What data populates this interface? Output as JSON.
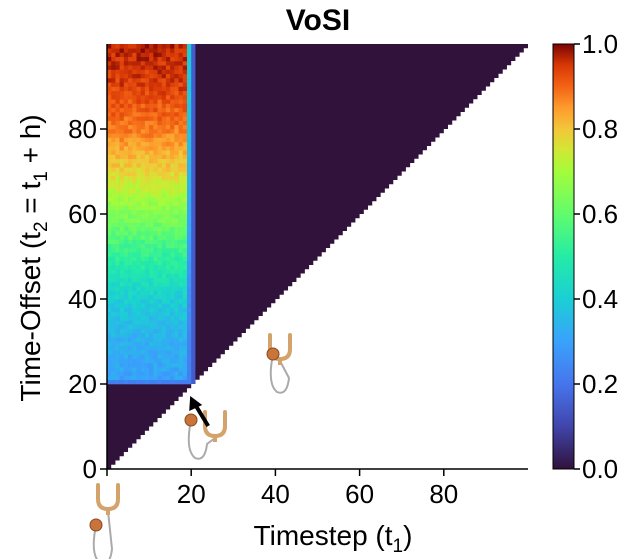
{
  "chart_data": {
    "type": "heatmap",
    "title": "VoSI",
    "xlabel": {
      "main": "Timestep (t",
      "sub": "1",
      "close": ")"
    },
    "ylabel": {
      "p1": "Time-Offset (t",
      "s1": "2",
      "p2": " = t",
      "s2": "1",
      "p3": " + h)"
    },
    "xlim": [
      0,
      100
    ],
    "ylim": [
      0,
      100
    ],
    "x_ticks": [
      0,
      20,
      40,
      60,
      80
    ],
    "y_ticks": [
      0,
      20,
      40,
      60,
      80
    ],
    "x_tick_labels": [
      "20",
      "40",
      "60",
      "80"
    ],
    "y_tick_labels": [
      "0",
      "20",
      "40",
      "60",
      "80"
    ],
    "colorbar": {
      "range": [
        0,
        1
      ],
      "ticks": [
        0.0,
        0.2,
        0.4,
        0.6,
        0.8,
        1.0
      ],
      "tick_labels": [
        "0.0",
        "0.2",
        "0.4",
        "0.6",
        "0.8",
        "1.0"
      ],
      "colormap": "turbo"
    },
    "grid": false,
    "region_description": {
      "mask": "upper triangle (t2 >= t1) shown, lower triangle blank",
      "low_band": {
        "y_range": [
          0,
          20
        ],
        "value": 0.0
      },
      "active_block": {
        "x_range": [
          0,
          20
        ],
        "y_range": [
          20,
          100
        ],
        "value_by_offset": [
          {
            "y": 20,
            "v": 0.3
          },
          {
            "y": 30,
            "v": 0.33
          },
          {
            "y": 40,
            "v": 0.4
          },
          {
            "y": 50,
            "v": 0.52
          },
          {
            "y": 60,
            "v": 0.65
          },
          {
            "y": 70,
            "v": 0.78
          },
          {
            "y": 80,
            "v": 0.88
          },
          {
            "y": 90,
            "v": 0.94
          },
          {
            "y": 100,
            "v": 0.97
          }
        ],
        "edge_value": 0.2
      },
      "rest_value": 0.0
    },
    "annotations": [
      {
        "type": "arrow",
        "points_to": [
          20,
          20
        ]
      },
      {
        "type": "icon",
        "name": "claw-with-ball-icon",
        "at": [
          0,
          0
        ]
      },
      {
        "type": "icon",
        "name": "claw-with-ball-icon",
        "at": [
          24,
          11
        ]
      },
      {
        "type": "icon",
        "name": "claw-with-ball-icon",
        "at": [
          40,
          25
        ]
      }
    ]
  },
  "colors": {
    "background": "#ffffff",
    "low": "#30123b",
    "claw": "#d4a36c",
    "ball": "#c8743a",
    "string": "#aaaaaa"
  }
}
